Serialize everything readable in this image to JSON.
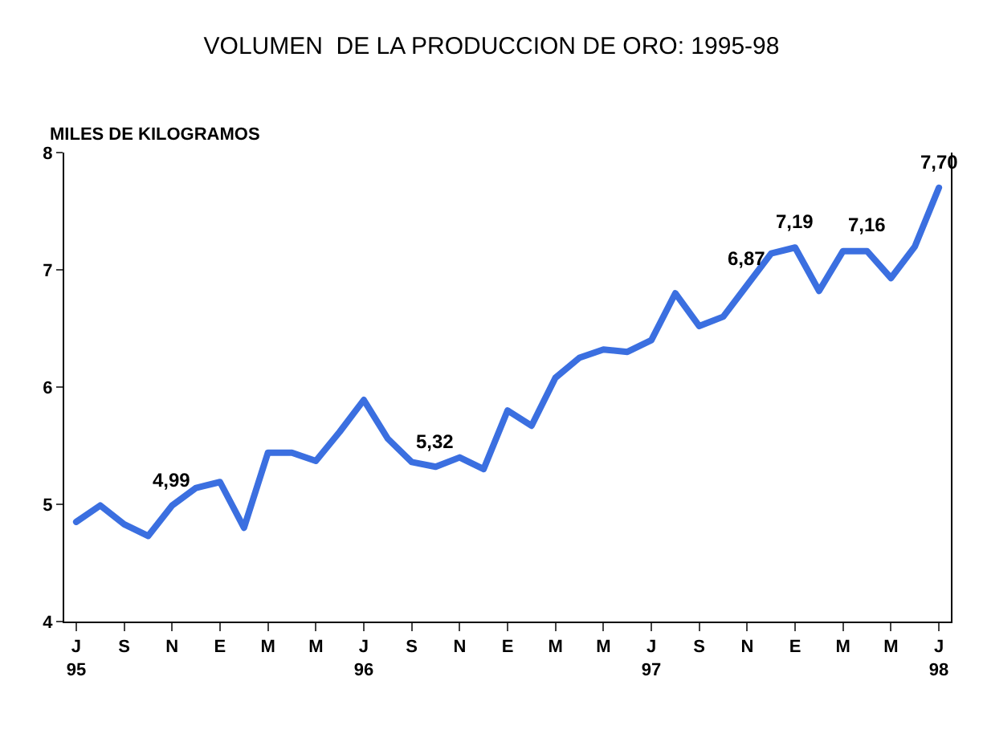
{
  "chart_data": {
    "type": "line",
    "title": "VOLUMEN  DE LA PRODUCCION DE ORO: 1995-98",
    "ylabel": "MILES DE KILOGRAMOS",
    "categories": [
      "J\n95",
      null,
      "S",
      null,
      "N",
      null,
      "E",
      null,
      "M",
      null,
      "M",
      null,
      "J\n96",
      null,
      "S",
      null,
      "N",
      null,
      "E",
      null,
      "M",
      null,
      "M",
      null,
      "J\n97",
      null,
      "S",
      null,
      "N",
      null,
      "E",
      null,
      "M",
      null,
      "M",
      null,
      "J\n98"
    ],
    "series": [
      {
        "color": "#3b6fe0",
        "values": [
          4.85,
          4.99,
          4.83,
          4.73,
          4.99,
          5.14,
          5.19,
          4.8,
          5.44,
          5.44,
          5.37,
          5.62,
          5.89,
          5.56,
          5.36,
          5.32,
          5.4,
          5.3,
          5.8,
          5.67,
          6.08,
          6.25,
          6.32,
          6.3,
          6.4,
          6.8,
          6.52,
          6.6,
          6.87,
          7.14,
          7.19,
          6.82,
          7.16,
          7.16,
          6.93,
          7.2,
          7.7
        ],
        "value_labels": [
          null,
          null,
          null,
          null,
          "4,99",
          null,
          null,
          null,
          null,
          null,
          null,
          null,
          null,
          null,
          null,
          "5,32",
          null,
          null,
          null,
          null,
          null,
          null,
          null,
          null,
          null,
          null,
          null,
          null,
          "6,87",
          null,
          "7,19",
          null,
          null,
          "7,16",
          null,
          null,
          "7,70"
        ]
      }
    ],
    "ylim": [
      4,
      8
    ],
    "yticks": [
      4,
      5,
      6,
      7,
      8
    ],
    "grid": false,
    "marker": "none",
    "line_style": "solid"
  }
}
